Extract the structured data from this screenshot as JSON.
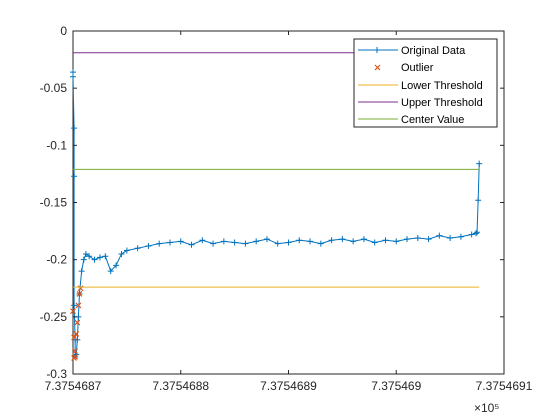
{
  "chart_data": {
    "type": "line",
    "xlim": [
      737546.87,
      737546.91
    ],
    "ylim": [
      -0.3,
      0
    ],
    "x_ticks": [
      737546.87,
      737546.88,
      737546.89,
      737546.9,
      737546.91
    ],
    "x_tick_labels": [
      "7.3754687",
      "7.3754688",
      "7.3754689",
      "7.375469",
      "7.3754691"
    ],
    "x_exponent_label": "×10⁵",
    "y_ticks": [
      0,
      -0.05,
      -0.1,
      -0.15,
      -0.2,
      -0.25,
      -0.3
    ],
    "y_tick_labels": [
      "0",
      "-0.05",
      "-0.1",
      "-0.15",
      "-0.2",
      "-0.25",
      "-0.3"
    ],
    "grid": false,
    "legend_position": "top-right",
    "legend": [
      "Original Data",
      "Outlier",
      "Lower Threshold",
      "Upper Threshold",
      "Center Value"
    ],
    "series": [
      {
        "name": "Original Data",
        "color": "#0072BD",
        "marker": "+",
        "x": [
          737546.87,
          737546.87,
          737546.8701,
          737546.8701,
          737546.8701,
          737546.8702,
          737546.8702,
          737546.8703,
          737546.8704,
          737546.8705,
          737546.8706,
          737546.8708,
          737546.871,
          737546.8712,
          737546.8715,
          737546.872,
          737546.8725,
          737546.873,
          737546.8735,
          737546.874,
          737546.8745,
          737546.875,
          737546.876,
          737546.877,
          737546.878,
          737546.879,
          737546.88,
          737546.881,
          737546.882,
          737546.883,
          737546.884,
          737546.885,
          737546.886,
          737546.887,
          737546.888,
          737546.889,
          737546.89,
          737546.891,
          737546.892,
          737546.893,
          737546.894,
          737546.895,
          737546.896,
          737546.897,
          737546.898,
          737546.899,
          737546.9,
          737546.901,
          737546.902,
          737546.903,
          737546.904,
          737546.905,
          737546.906,
          737546.907,
          737546.9074,
          737546.9075,
          737546.9076,
          737546.9077
        ],
        "y": [
          -0.036,
          -0.04,
          -0.085,
          -0.127,
          -0.24,
          -0.27,
          -0.285,
          -0.283,
          -0.27,
          -0.25,
          -0.23,
          -0.21,
          -0.2,
          -0.195,
          -0.197,
          -0.2,
          -0.198,
          -0.197,
          -0.21,
          -0.205,
          -0.195,
          -0.192,
          -0.19,
          -0.188,
          -0.186,
          -0.185,
          -0.184,
          -0.187,
          -0.183,
          -0.186,
          -0.184,
          -0.185,
          -0.186,
          -0.184,
          -0.182,
          -0.186,
          -0.185,
          -0.183,
          -0.184,
          -0.186,
          -0.183,
          -0.182,
          -0.184,
          -0.182,
          -0.185,
          -0.183,
          -0.184,
          -0.182,
          -0.181,
          -0.182,
          -0.179,
          -0.181,
          -0.18,
          -0.178,
          -0.177,
          -0.176,
          -0.148,
          -0.116
        ]
      },
      {
        "name": "Outlier",
        "color": "#D95319",
        "marker": "x",
        "x": [
          737546.87,
          737546.8701,
          737546.8701,
          737546.8702,
          737546.8702,
          737546.8703,
          737546.8704,
          737546.8705,
          737546.8706,
          737546.8707
        ],
        "y": [
          -0.245,
          -0.268,
          -0.286,
          -0.285,
          -0.28,
          -0.265,
          -0.255,
          -0.24,
          -0.23,
          -0.225
        ]
      },
      {
        "name": "Lower Threshold",
        "color": "#EDB120",
        "x": [
          737546.87,
          737546.9077
        ],
        "y": [
          -0.224,
          -0.224
        ]
      },
      {
        "name": "Upper Threshold",
        "color": "#7E2F8E",
        "x": [
          737546.87,
          737546.9077
        ],
        "y": [
          -0.019,
          -0.019
        ]
      },
      {
        "name": "Center Value",
        "color": "#77AC30",
        "x": [
          737546.87,
          737546.9077
        ],
        "y": [
          -0.121,
          -0.121
        ]
      }
    ]
  }
}
